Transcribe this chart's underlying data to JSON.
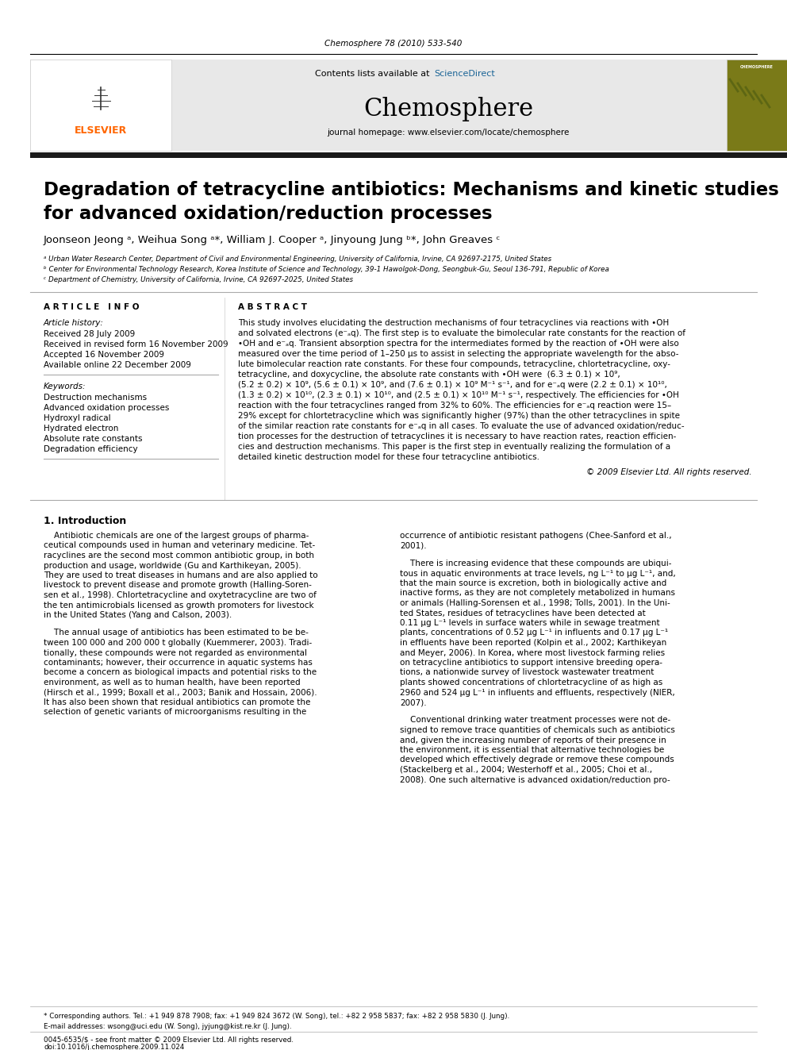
{
  "journal_ref": "Chemosphere 78 (2010) 533-540",
  "contents_text": "Contents lists available at ",
  "sciencedirect_text": "ScienceDirect",
  "journal_name": "Chemosphere",
  "journal_homepage": "journal homepage: www.elsevier.com/locate/chemosphere",
  "title_line1": "Degradation of tetracycline antibiotics: Mechanisms and kinetic studies",
  "title_line2": "for advanced oxidation/reduction processes",
  "authors": "Joonseon Jeong ᵃ, Weihua Song ᵃ*, William J. Cooper ᵃ, Jinyoung Jung ᵇ*, John Greaves ᶜ",
  "affil_a": "ᵃ Urban Water Research Center, Department of Civil and Environmental Engineering, University of California, Irvine, CA 92697-2175, United States",
  "affil_b": "ᵇ Center for Environmental Technology Research, Korea Institute of Science and Technology, 39-1 Hawolgok-Dong, Seongbuk-Gu, Seoul 136-791, Republic of Korea",
  "affil_c": "ᶜ Department of Chemistry, University of California, Irvine, CA 92697-2025, United States",
  "article_info_title": "A R T I C L E   I N F O",
  "abstract_title": "A B S T R A C T",
  "article_history_label": "Article history:",
  "received": "Received 28 July 2009",
  "revised": "Received in revised form 16 November 2009",
  "accepted": "Accepted 16 November 2009",
  "available": "Available online 22 December 2009",
  "keywords_label": "Keywords:",
  "keyword1": "Destruction mechanisms",
  "keyword2": "Advanced oxidation processes",
  "keyword3": "Hydroxyl radical",
  "keyword4": "Hydrated electron",
  "keyword5": "Absolute rate constants",
  "keyword6": "Degradation efficiency",
  "copyright": "© 2009 Elsevier Ltd. All rights reserved.",
  "section1_title": "1. Introduction",
  "footer_text": "0045-6535/$ - see front matter © 2009 Elsevier Ltd. All rights reserved.",
  "doi_text": "doi:10.1016/j.chemosphere.2009.11.024",
  "footnote_star": "* Corresponding authors. Tel.: +1 949 878 7908; fax: +1 949 824 3672 (W. Song), tel.: +82 2 958 5837; fax: +82 2 958 5830 (J. Jung).",
  "footnote_email": "E-mail addresses: wsong@uci.edu (W. Song), jyjung@kist.re.kr (J. Jung).",
  "elsevier_orange": "#FF6600",
  "sciencedirect_blue": "#1a6496",
  "link_color": "#1a6496",
  "thick_bar_color": "#1a1a1a"
}
